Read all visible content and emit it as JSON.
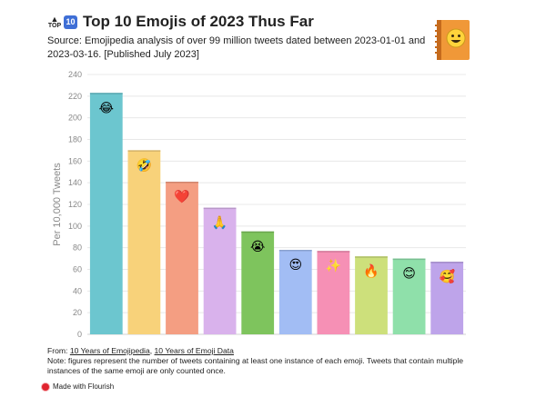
{
  "header": {
    "badge_top": "TOP",
    "badge_ten": "10",
    "title": "Top 10 Emojis of 2023 Thus Far",
    "subtitle": "Source: Emojipedia analysis of over 99 million tweets dated between 2023-01-01 and 2023-03-16. [Published July 2023]"
  },
  "logo": {
    "icon": "emojipedia-book-icon",
    "color": "#e3802b"
  },
  "chart_data": {
    "type": "bar",
    "categories": [
      "😂",
      "🤣",
      "❤️",
      "🙏",
      "😭",
      "😍",
      "✨",
      "🔥",
      "😊",
      "🥰"
    ],
    "values": [
      223,
      170,
      141,
      117,
      95,
      78,
      77,
      72,
      70,
      67
    ],
    "colors": [
      "#6cc6cf",
      "#f8d27a",
      "#f49e82",
      "#d9b2ec",
      "#7ec45d",
      "#a2bdf4",
      "#f690b5",
      "#cde07b",
      "#8fe0aa",
      "#bea4ea"
    ],
    "title": "Top 10 Emojis of 2023 Thus Far",
    "xlabel": "",
    "ylabel": "Per 10,000 Tweets",
    "ylim": [
      0,
      240
    ],
    "yticks": [
      0,
      20,
      40,
      60,
      80,
      100,
      120,
      140,
      160,
      180,
      200,
      220,
      240
    ],
    "grid": true
  },
  "footer": {
    "from_label": "From: ",
    "link1": "10 Years of Emojipedia",
    "sep": ", ",
    "link2": "10 Years of Emoji Data",
    "note": "Note: figures represent the number of tweets containing at least one instance of each emoji. Tweets that contain multiple instances of the same emoji are only counted once."
  },
  "made_with": "Made with Flourish"
}
